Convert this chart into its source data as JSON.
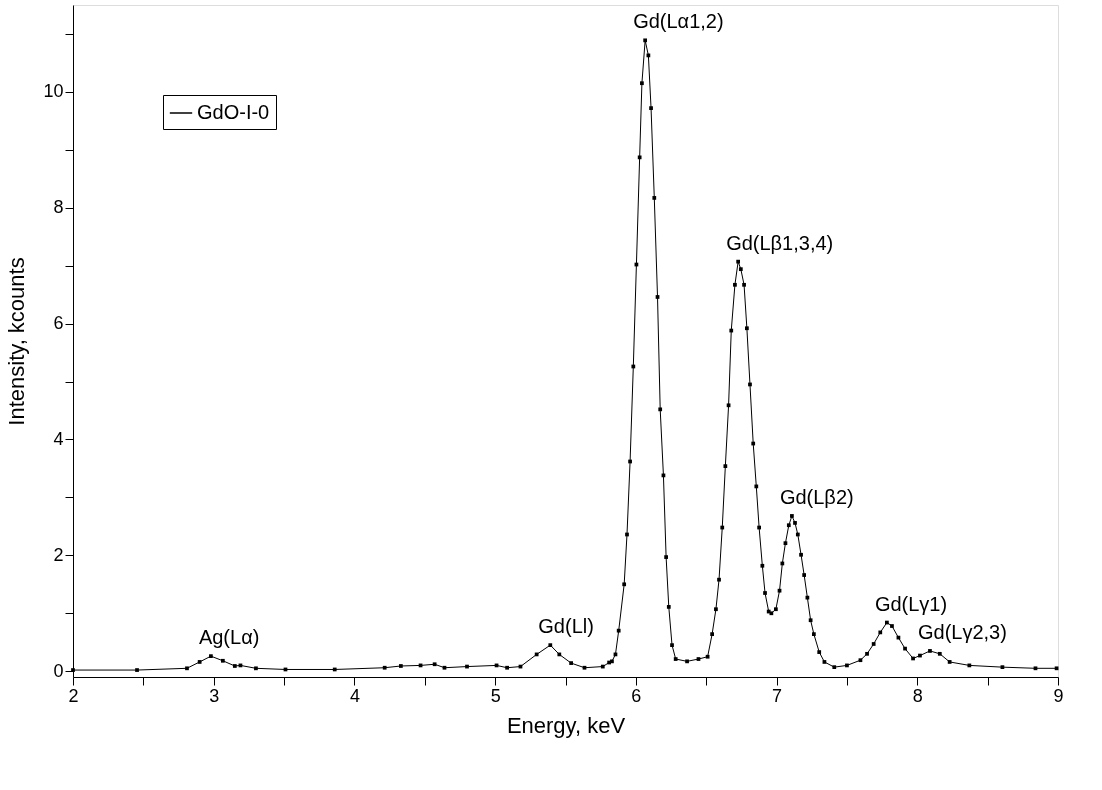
{
  "chart_data": {
    "type": "line",
    "xlabel": "Energy, keV",
    "ylabel": "Intensity, kcounts",
    "x": [
      2.0,
      2.455,
      2.81,
      2.9,
      2.98,
      3.065,
      3.15,
      3.19,
      3.3,
      3.51,
      3.86,
      4.215,
      4.33,
      4.47,
      4.57,
      4.64,
      4.8,
      5.01,
      5.085,
      5.18,
      5.295,
      5.392,
      5.456,
      5.54,
      5.635,
      5.765,
      5.81,
      5.83,
      5.855,
      5.878,
      5.917,
      5.937,
      5.959,
      5.982,
      6.004,
      6.027,
      6.043,
      6.066,
      6.089,
      6.108,
      6.131,
      6.154,
      6.173,
      6.196,
      6.215,
      6.234,
      6.257,
      6.283,
      6.364,
      6.445,
      6.51,
      6.542,
      6.569,
      6.591,
      6.614,
      6.636,
      6.659,
      6.678,
      6.704,
      6.727,
      6.746,
      6.769,
      6.789,
      6.811,
      6.834,
      6.856,
      6.876,
      6.899,
      6.918,
      6.944,
      6.963,
      6.995,
      7.021,
      7.041,
      7.063,
      7.087,
      7.109,
      7.131,
      7.151,
      7.174,
      7.196,
      7.219,
      7.242,
      7.265,
      7.303,
      7.34,
      7.41,
      7.5,
      7.596,
      7.643,
      7.69,
      7.737,
      7.784,
      7.82,
      7.866,
      7.913,
      7.97,
      8.019,
      8.09,
      8.16,
      8.23,
      8.37,
      8.605,
      8.84,
      8.99
    ],
    "series": [
      {
        "name": "GdO-I-0",
        "color": "#000000",
        "values": [
          0.02,
          0.02,
          0.05,
          0.16,
          0.26,
          0.18,
          0.09,
          0.1,
          0.05,
          0.03,
          0.03,
          0.06,
          0.09,
          0.1,
          0.12,
          0.06,
          0.08,
          0.1,
          0.06,
          0.08,
          0.29,
          0.45,
          0.29,
          0.14,
          0.06,
          0.08,
          0.15,
          0.17,
          0.29,
          0.7,
          1.5,
          2.36,
          3.62,
          5.26,
          7.02,
          8.87,
          10.15,
          10.89,
          10.63,
          9.72,
          8.17,
          6.46,
          4.52,
          3.38,
          1.97,
          1.11,
          0.45,
          0.21,
          0.17,
          0.21,
          0.25,
          0.64,
          1.07,
          1.58,
          2.48,
          3.54,
          4.59,
          5.88,
          6.67,
          7.07,
          6.94,
          6.67,
          5.92,
          4.95,
          3.93,
          3.19,
          2.48,
          1.82,
          1.35,
          1.03,
          1.0,
          1.07,
          1.39,
          1.86,
          2.21,
          2.52,
          2.68,
          2.56,
          2.36,
          2.01,
          1.66,
          1.27,
          0.88,
          0.64,
          0.33,
          0.16,
          0.07,
          0.1,
          0.19,
          0.3,
          0.47,
          0.67,
          0.84,
          0.78,
          0.58,
          0.39,
          0.22,
          0.27,
          0.35,
          0.3,
          0.16,
          0.1,
          0.07,
          0.05,
          0.05
        ]
      }
    ],
    "xlim": [
      2,
      9
    ],
    "xticks": [
      2,
      {
        "value": 2.5,
        "label": null
      },
      3,
      {
        "value": 3.5,
        "label": null
      },
      4,
      {
        "value": 4.5,
        "label": null
      },
      5,
      {
        "value": 5.5,
        "label": null
      },
      6,
      {
        "value": 6.5,
        "label": null
      },
      7,
      {
        "value": 7.5,
        "label": null
      },
      8,
      {
        "value": 8.5,
        "label": null
      },
      9
    ],
    "ylim": [
      -0.1,
      11.5
    ],
    "yticks": [
      0,
      {
        "value": 1,
        "label": null
      },
      2,
      {
        "value": 3,
        "label": null
      },
      4,
      {
        "value": 5,
        "label": null
      },
      6,
      {
        "value": 7,
        "label": null
      },
      8,
      {
        "value": 9,
        "label": null
      },
      10,
      {
        "value": 11,
        "label": null
      }
    ],
    "annotations": [
      {
        "text": "Ag(Lα)",
        "x": 2.98,
        "y": 0.26
      },
      {
        "text": "Gd(Ll)",
        "x": 5.392,
        "y": 0.45
      },
      {
        "text": "Gd(Lα1,2)",
        "x": 6.066,
        "y": 10.89
      },
      {
        "text": "Gd(Lβ1,3,4)",
        "x": 6.727,
        "y": 7.07
      },
      {
        "text": "Gd(Lβ2)",
        "x": 7.109,
        "y": 2.68
      },
      {
        "text": "Gd(Lγ1)",
        "x": 7.784,
        "y": 0.84
      },
      {
        "text": "Gd(Lγ2,3)",
        "x": 8.09,
        "y": 0.35
      }
    ],
    "marker": "square",
    "line_style": "solid",
    "grid": false,
    "legend": "top left"
  }
}
